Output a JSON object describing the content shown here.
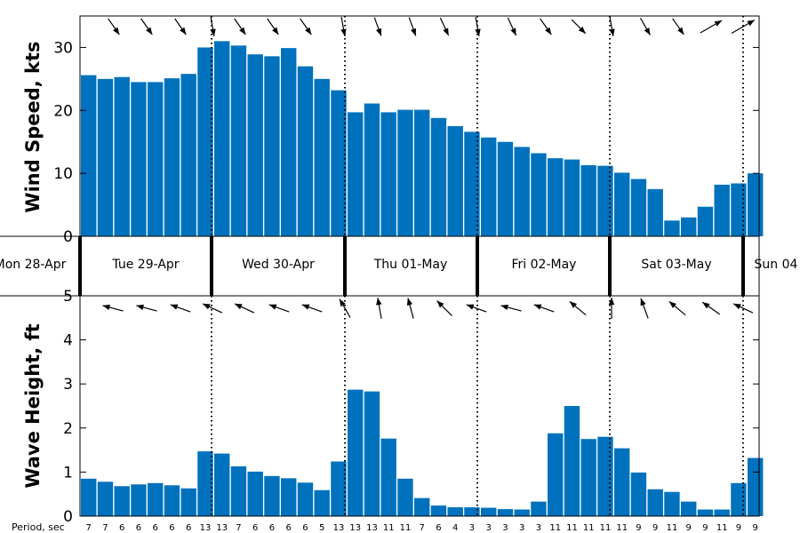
{
  "chart_data": [
    {
      "type": "bar",
      "ylabel": "Wind Speed, kts",
      "ylim": [
        0,
        35
      ],
      "yticks": [
        0,
        10,
        20,
        30
      ],
      "values": [
        25.6,
        25.0,
        25.3,
        24.5,
        24.5,
        25.1,
        25.8,
        30.0,
        31.0,
        30.3,
        28.9,
        28.6,
        29.9,
        27.0,
        25.0,
        23.2,
        19.7,
        21.1,
        19.7,
        20.1,
        20.1,
        18.8,
        17.5,
        16.6,
        15.7,
        15.0,
        14.2,
        13.2,
        12.4,
        12.2,
        11.3,
        11.2,
        10.1,
        9.1,
        7.5,
        2.5,
        3.0,
        4.7,
        8.2,
        8.4,
        10.0
      ],
      "direction_arrows_deg": [
        -30,
        -30,
        -30,
        -30,
        30,
        30,
        30,
        30,
        30,
        30,
        30,
        30,
        30,
        30,
        30,
        60
      ],
      "grid": false,
      "color": "#0072BD"
    },
    {
      "type": "bar",
      "ylabel": "Wave Height, ft",
      "ylim": [
        0,
        5
      ],
      "yticks": [
        0,
        1,
        2,
        3,
        4,
        5
      ],
      "values": [
        0.85,
        0.78,
        0.68,
        0.72,
        0.75,
        0.7,
        0.63,
        1.47,
        1.42,
        1.13,
        1.01,
        0.91,
        0.86,
        0.76,
        0.59,
        1.24,
        2.87,
        2.83,
        1.76,
        0.85,
        0.41,
        0.24,
        0.2,
        0.2,
        0.19,
        0.16,
        0.15,
        0.33,
        1.88,
        2.5,
        1.75,
        1.8,
        1.54,
        0.99,
        0.61,
        0.55,
        0.33,
        0.15,
        0.15,
        0.75,
        1.32
      ],
      "period_label": "Period, sec",
      "periods": [
        "7",
        "7",
        "6",
        "6",
        "6",
        "6",
        "6",
        "13",
        "13",
        "7",
        "6",
        "6",
        "6",
        "6",
        "5",
        "13",
        "13",
        "13",
        "11",
        "11",
        "7",
        "6",
        "4",
        "3",
        "3",
        "3",
        "3",
        "3",
        "11",
        "11",
        "11",
        "11",
        "11",
        "9",
        "9",
        "11",
        "9",
        "9",
        "11",
        "9",
        "9"
      ],
      "grid": false,
      "color": "#0072BD"
    }
  ],
  "days": [
    "Mon 28-Apr",
    "Tue 29-Apr",
    "Wed 30-Apr",
    "Thu 01-May",
    "Fri 02-May",
    "Sat 03-May",
    "Sun 04"
  ]
}
